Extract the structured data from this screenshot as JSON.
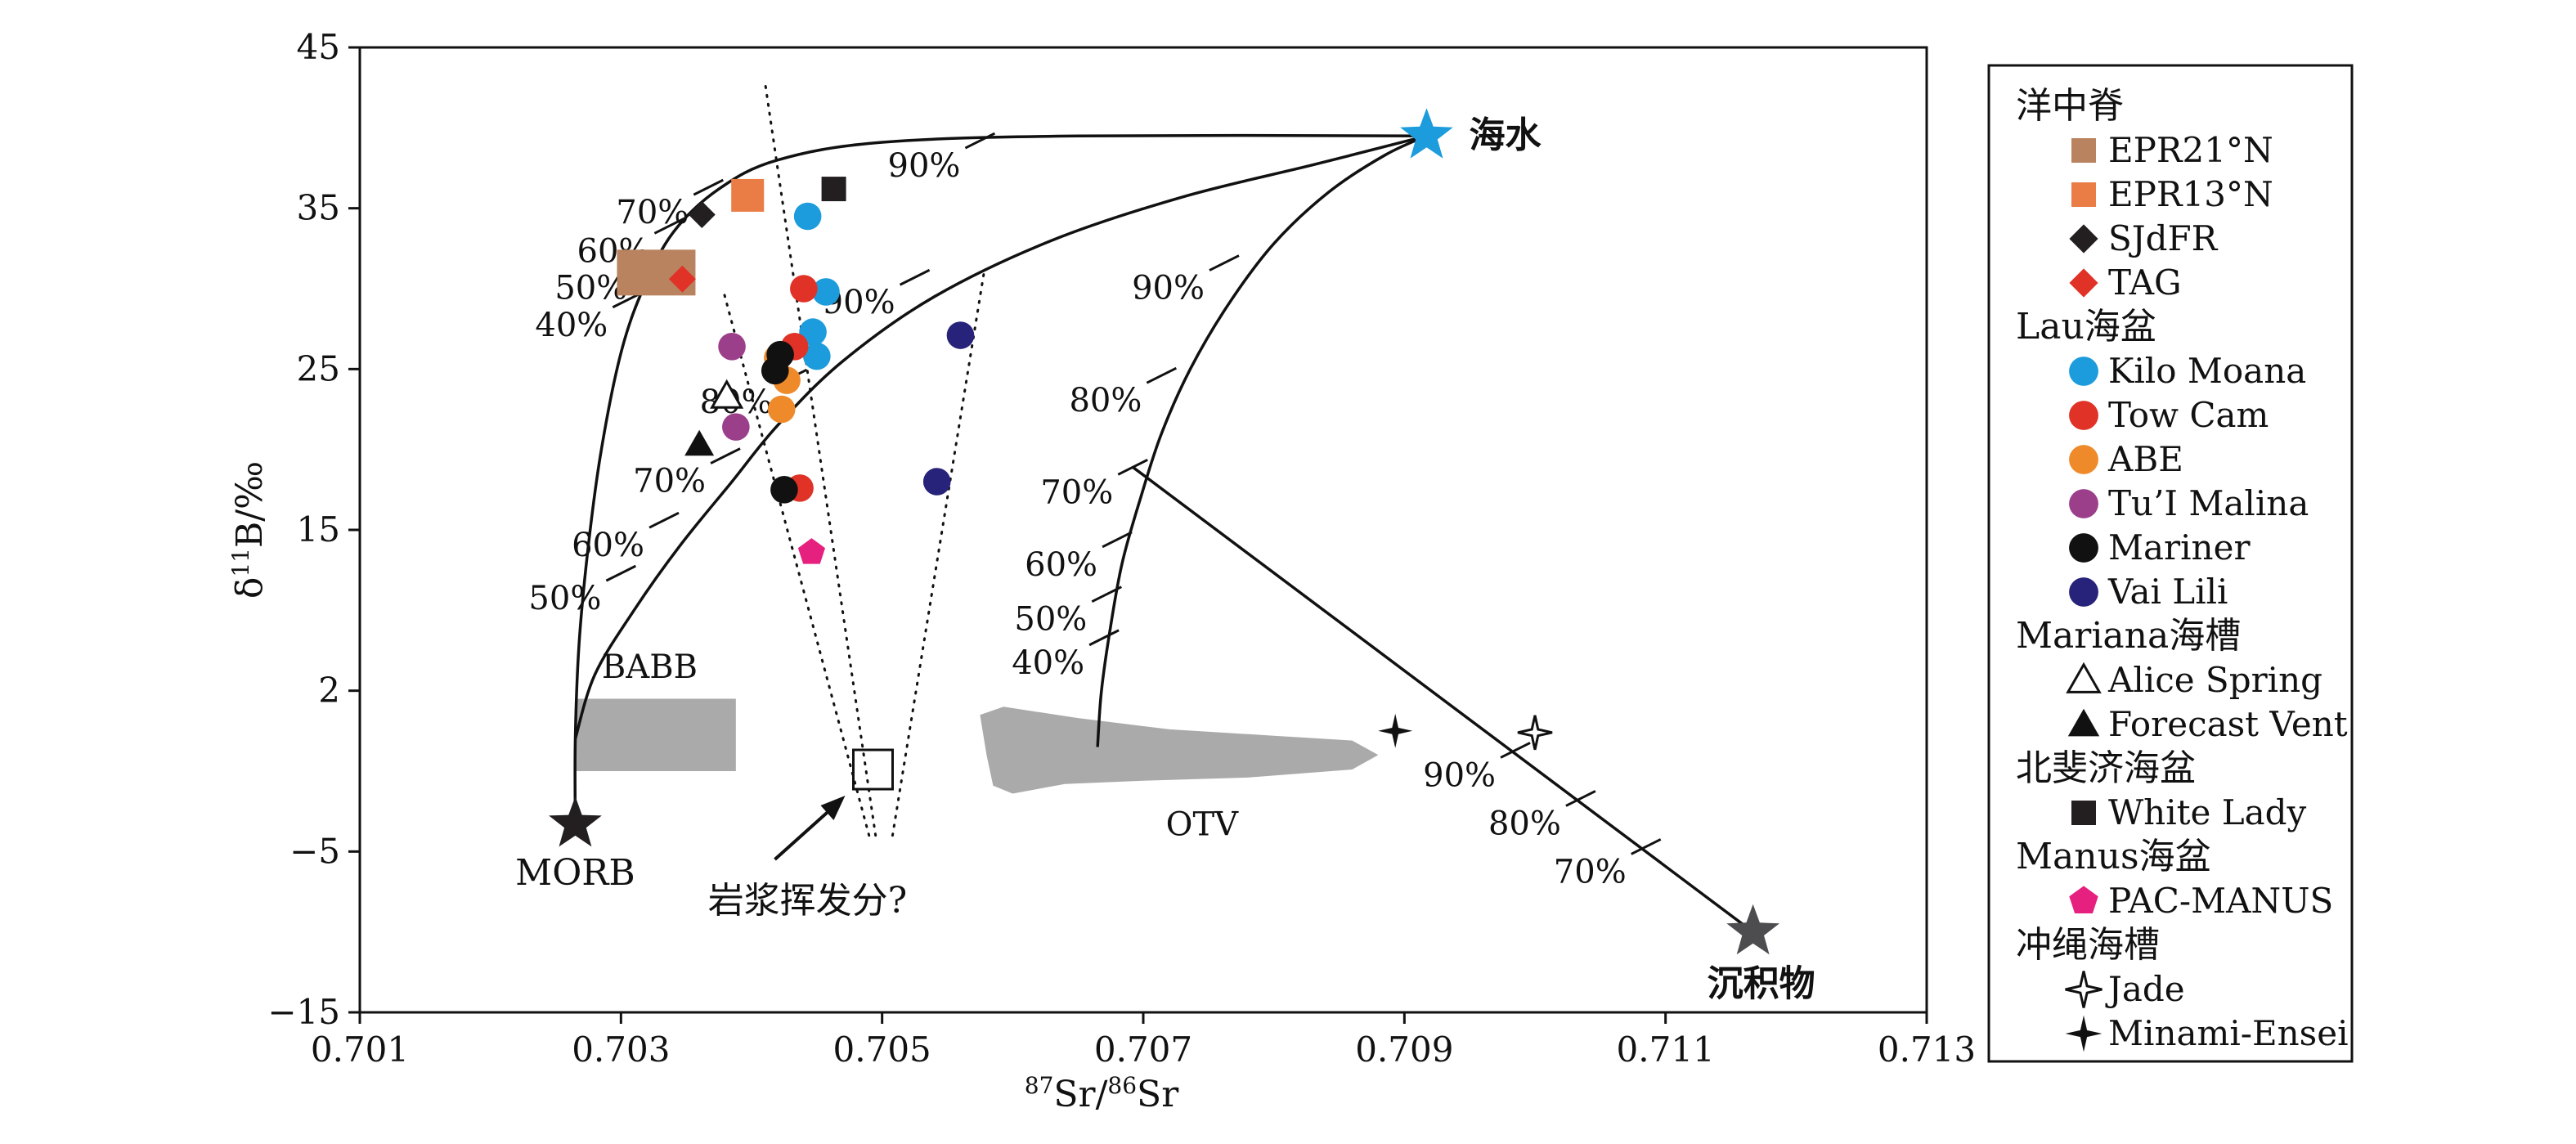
{
  "chart_data": {
    "type": "scatter",
    "xlabel": "87Sr/86Sr",
    "xlabel_parts": {
      "sup": "87",
      "a": "Sr/",
      "sup2": "86",
      "b": "Sr"
    },
    "ylabel": "δ11B/‰",
    "ylabel_parts": {
      "a": "δ",
      "sup": "11",
      "b": "B/‰"
    },
    "xlim": [
      0.701,
      0.713
    ],
    "ylim": [
      -15,
      45
    ],
    "x_ticks": [
      0.701,
      0.703,
      0.705,
      0.707,
      0.709,
      0.711,
      0.713
    ],
    "x_tick_labels": [
      "0.701",
      "0.703",
      "0.705",
      "0.707",
      "0.709",
      "0.711",
      "0.713"
    ],
    "y_ticks": [
      -15,
      -5,
      2,
      15,
      25,
      35,
      45
    ],
    "y_tick_labels": [
      "−15",
      "−5",
      "2",
      "15",
      "25",
      "35",
      "45"
    ],
    "y_scale_note": "tick label 2 printed at position 5",
    "grid": false,
    "legend_placement": "right-outside",
    "legend": [
      {
        "group": "洋中脊",
        "items": [
          {
            "label": "EPR21°N",
            "marker": "square",
            "color": "#B9835F"
          },
          {
            "label": "EPR13°N",
            "marker": "square",
            "color": "#EA7C45"
          },
          {
            "label": "SJdFR",
            "marker": "diamond",
            "color": "#231F20"
          },
          {
            "label": "TAG",
            "marker": "diamond",
            "color": "#E03226"
          }
        ]
      },
      {
        "group": "Lau海盆",
        "items": [
          {
            "label": "Kilo Moana",
            "marker": "circle",
            "color": "#1C9CDC"
          },
          {
            "label": "Tow Cam",
            "marker": "circle",
            "color": "#E03226"
          },
          {
            "label": "ABE",
            "marker": "circle",
            "color": "#EF8A2A"
          },
          {
            "label": "Tu’I Malina",
            "marker": "circle",
            "color": "#9C3F8B"
          },
          {
            "label": "Mariner",
            "marker": "circle",
            "color": "#111111"
          },
          {
            "label": "Vai Lili",
            "marker": "circle",
            "color": "#27237A"
          }
        ]
      },
      {
        "group": "Mariana海槽",
        "items": [
          {
            "label": "Alice Spring",
            "marker": "triangle-open",
            "color": "#111111"
          },
          {
            "label": "Forecast Vent",
            "marker": "triangle",
            "color": "#111111"
          }
        ]
      },
      {
        "group": "北斐济海盆",
        "items": [
          {
            "label": "White Lady",
            "marker": "square",
            "color": "#231F20"
          }
        ]
      },
      {
        "group": "Manus海盆",
        "items": [
          {
            "label": "PAC-MANUS",
            "marker": "pentagon",
            "color": "#E5207F"
          }
        ]
      },
      {
        "group": "冲绳海槽",
        "items": [
          {
            "label": "Jade",
            "marker": "star4-open",
            "color": "#111111"
          },
          {
            "label": "Minami-Ensei",
            "marker": "star4",
            "color": "#111111"
          }
        ]
      }
    ],
    "points": [
      {
        "series": "EPR21°N",
        "x": 0.70327,
        "y": 31.0
      },
      {
        "series": "EPR13°N",
        "x": 0.70397,
        "y": 35.8
      },
      {
        "series": "SJdFR",
        "x": 0.70362,
        "y": 34.6
      },
      {
        "series": "TAG",
        "x": 0.70347,
        "y": 30.6
      },
      {
        "series": "Kilo Moana",
        "x": 0.70443,
        "y": 34.5
      },
      {
        "series": "Kilo Moana",
        "x": 0.70457,
        "y": 29.8
      },
      {
        "series": "Kilo Moana",
        "x": 0.70447,
        "y": 27.3
      },
      {
        "series": "Kilo Moana",
        "x": 0.7045,
        "y": 25.8
      },
      {
        "series": "Tow Cam",
        "x": 0.7044,
        "y": 30.0
      },
      {
        "series": "Tow Cam",
        "x": 0.70433,
        "y": 26.4
      },
      {
        "series": "Tow Cam",
        "x": 0.70437,
        "y": 17.6
      },
      {
        "series": "ABE",
        "x": 0.7042,
        "y": 25.7
      },
      {
        "series": "ABE",
        "x": 0.70427,
        "y": 24.3
      },
      {
        "series": "ABE",
        "x": 0.70423,
        "y": 22.5
      },
      {
        "series": "Tu’I Malina",
        "x": 0.70385,
        "y": 26.4
      },
      {
        "series": "Tu’I Malina",
        "x": 0.70388,
        "y": 21.4
      },
      {
        "series": "Mariner",
        "x": 0.70422,
        "y": 25.9
      },
      {
        "series": "Mariner",
        "x": 0.70418,
        "y": 24.9
      },
      {
        "series": "Mariner",
        "x": 0.70425,
        "y": 17.5
      },
      {
        "series": "Vai Lili",
        "x": 0.7056,
        "y": 27.1
      },
      {
        "series": "Vai Lili",
        "x": 0.70542,
        "y": 18.0
      },
      {
        "series": "Alice Spring",
        "x": 0.70381,
        "y": 23.3
      },
      {
        "series": "Forecast Vent",
        "x": 0.7036,
        "y": 20.3
      },
      {
        "series": "White Lady",
        "x": 0.70463,
        "y": 36.2
      },
      {
        "series": "PAC-MANUS",
        "x": 0.70446,
        "y": 13.6
      },
      {
        "series": "Jade",
        "x": 0.71,
        "y": 2.4
      },
      {
        "series": "Minami-Ensei",
        "x": 0.70893,
        "y": 2.5
      }
    ],
    "end_members": [
      {
        "label": "海水",
        "x": 0.70917,
        "y": 39.5,
        "color": "#1C9CDC"
      },
      {
        "label": "MORB",
        "x": 0.70265,
        "y": -3.3,
        "color": "#231F20"
      },
      {
        "label": "沉积物",
        "x": 0.71167,
        "y": -10.0,
        "color": "#4D4D4F"
      }
    ],
    "mixing_curves": [
      {
        "name": "MORB-seawater",
        "points": [
          [
            0.70265,
            -3.3
          ],
          [
            0.70265,
            2
          ],
          [
            0.70268,
            8
          ],
          [
            0.70275,
            14
          ],
          [
            0.70285,
            20
          ],
          [
            0.703,
            26
          ],
          [
            0.70317,
            30
          ],
          [
            0.7034,
            33.5
          ],
          [
            0.70375,
            36.2
          ],
          [
            0.7042,
            38.0
          ],
          [
            0.705,
            39.1
          ],
          [
            0.7065,
            39.5
          ],
          [
            0.70917,
            39.5
          ]
        ],
        "ticks": [
          {
            "label": "40%",
            "x": 0.70305,
            "y": 29.3
          },
          {
            "label": "50%",
            "x": 0.7032,
            "y": 31.6
          },
          {
            "label": "60%",
            "x": 0.70337,
            "y": 33.9
          },
          {
            "label": "70%",
            "x": 0.70367,
            "y": 36.3
          },
          {
            "label": "90%",
            "x": 0.70575,
            "y": 39.2
          }
        ]
      },
      {
        "name": "BABB-seawater",
        "points": [
          [
            0.70265,
            2.0
          ],
          [
            0.7028,
            6
          ],
          [
            0.7031,
            10
          ],
          [
            0.70345,
            14
          ],
          [
            0.70385,
            18
          ],
          [
            0.7042,
            21.5
          ],
          [
            0.7047,
            25.5
          ],
          [
            0.7054,
            29.5
          ],
          [
            0.7063,
            33.0
          ],
          [
            0.7073,
            35.7
          ],
          [
            0.7083,
            37.7
          ],
          [
            0.70917,
            39.5
          ]
        ],
        "ticks": [
          {
            "label": "50%",
            "x": 0.703,
            "y": 12.3
          },
          {
            "label": "60%",
            "x": 0.70333,
            "y": 15.6
          },
          {
            "label": "70%",
            "x": 0.7038,
            "y": 19.6
          },
          {
            "label": "80%",
            "x": 0.70431,
            "y": 24.5
          },
          {
            "label": "90%",
            "x": 0.70525,
            "y": 30.7
          }
        ]
      },
      {
        "name": "OTV-seawater",
        "points": [
          [
            0.70665,
            1.5
          ],
          [
            0.70668,
            5
          ],
          [
            0.70675,
            9
          ],
          [
            0.70684,
            13
          ],
          [
            0.70698,
            17
          ],
          [
            0.70714,
            21
          ],
          [
            0.70736,
            25
          ],
          [
            0.70765,
            29
          ],
          [
            0.708,
            32.8
          ],
          [
            0.70842,
            36
          ],
          [
            0.70885,
            38.3
          ],
          [
            0.70917,
            39.5
          ]
        ],
        "ticks": [
          {
            "label": "40%",
            "x": 0.7067,
            "y": 8.3
          },
          {
            "label": "50%",
            "x": 0.70672,
            "y": 11.0
          },
          {
            "label": "60%",
            "x": 0.7068,
            "y": 14.4
          },
          {
            "label": "70%",
            "x": 0.70692,
            "y": 18.9
          },
          {
            "label": "80%",
            "x": 0.70714,
            "y": 24.6
          },
          {
            "label": "90%",
            "x": 0.70762,
            "y": 31.6
          }
        ]
      },
      {
        "name": "OTV-sediment",
        "points": [
          [
            0.70692,
            18.9
          ],
          [
            0.71167,
            -10.0
          ]
        ],
        "ticks": [
          {
            "label": "90%",
            "x": 0.70985,
            "y": 1.3
          },
          {
            "label": "80%",
            "x": 0.71035,
            "y": -1.7
          },
          {
            "label": "70%",
            "x": 0.71085,
            "y": -4.7
          }
        ]
      }
    ],
    "magmatic_lines": [
      [
        [
          0.70495,
          -4.0
        ],
        [
          0.7041,
          43.0
        ]
      ],
      [
        [
          0.7049,
          -4.0
        ],
        [
          0.70378,
          30.0
        ]
      ],
      [
        [
          0.70508,
          -4.0
        ],
        [
          0.70578,
          31.0
        ]
      ]
    ],
    "fields": [
      {
        "label": "BABB",
        "x0": 0.70265,
        "x1": 0.70388,
        "y0": 0.0,
        "y1": 4.5,
        "color": "#AAAAAA"
      },
      {
        "label": "OTV",
        "color": "#AAAAAA"
      }
    ],
    "annotation": {
      "label": "岩浆挥发分?",
      "box_x": 0.70493,
      "box_y": 0.1
    }
  }
}
